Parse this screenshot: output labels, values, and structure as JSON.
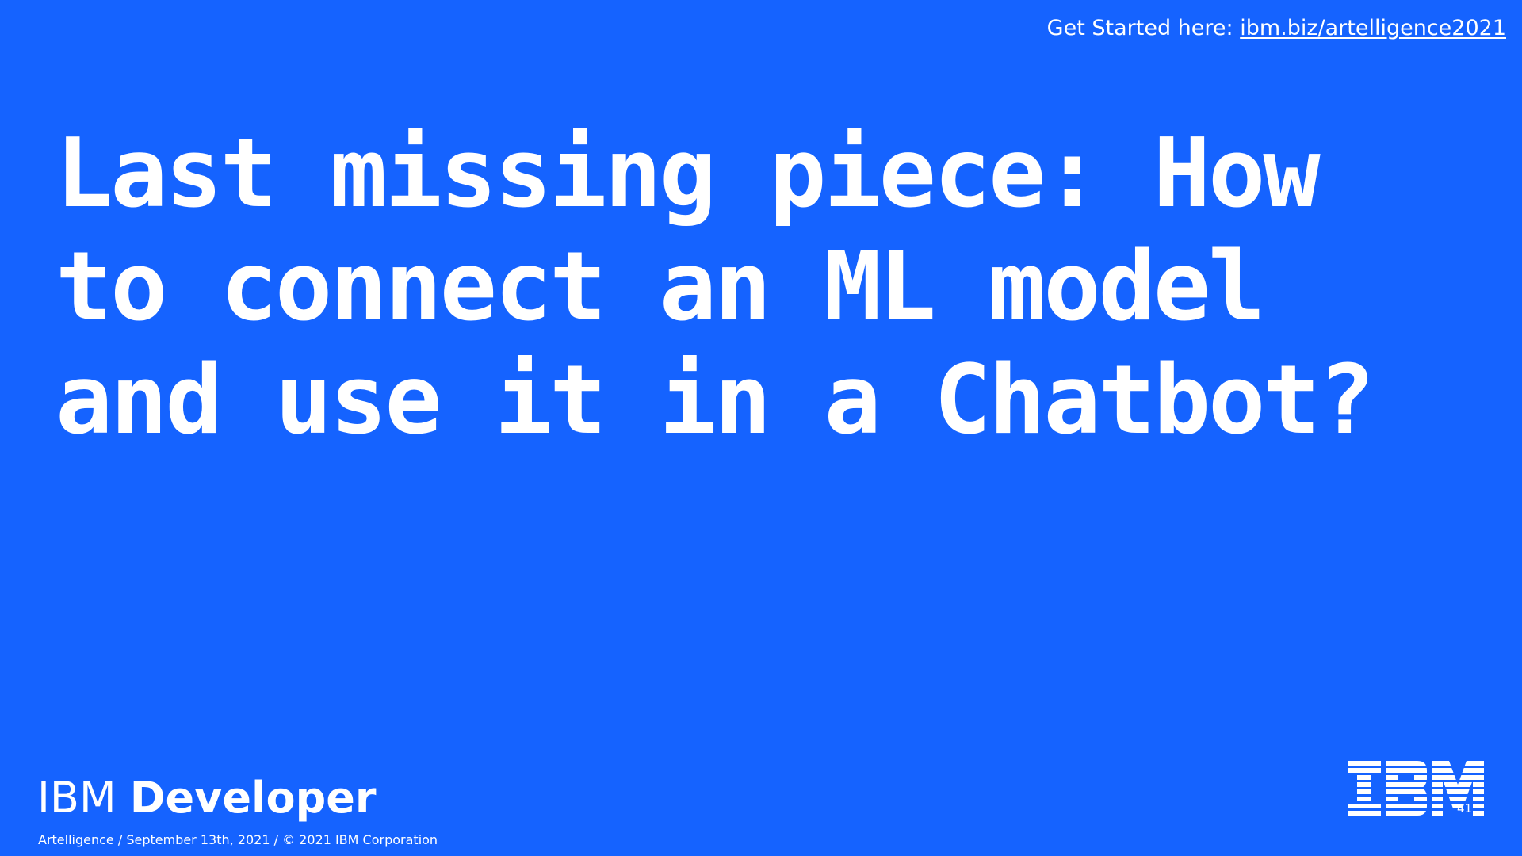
{
  "header": {
    "prompt": "Get Started here: ",
    "link_text": "ibm.biz/artelligence2021"
  },
  "slide": {
    "title": "Last missing piece: How\nto connect an ML model\nand use it in a Chatbot?",
    "page_number": "41"
  },
  "branding": {
    "name_light": "IBM",
    "name_bold": "Developer",
    "logo_text": "IBM",
    "footer": "Artelligence / September 13th, 2021 / © 2021 IBM Corporation"
  },
  "colors": {
    "background": "#1563ff",
    "text": "#ffffff"
  }
}
